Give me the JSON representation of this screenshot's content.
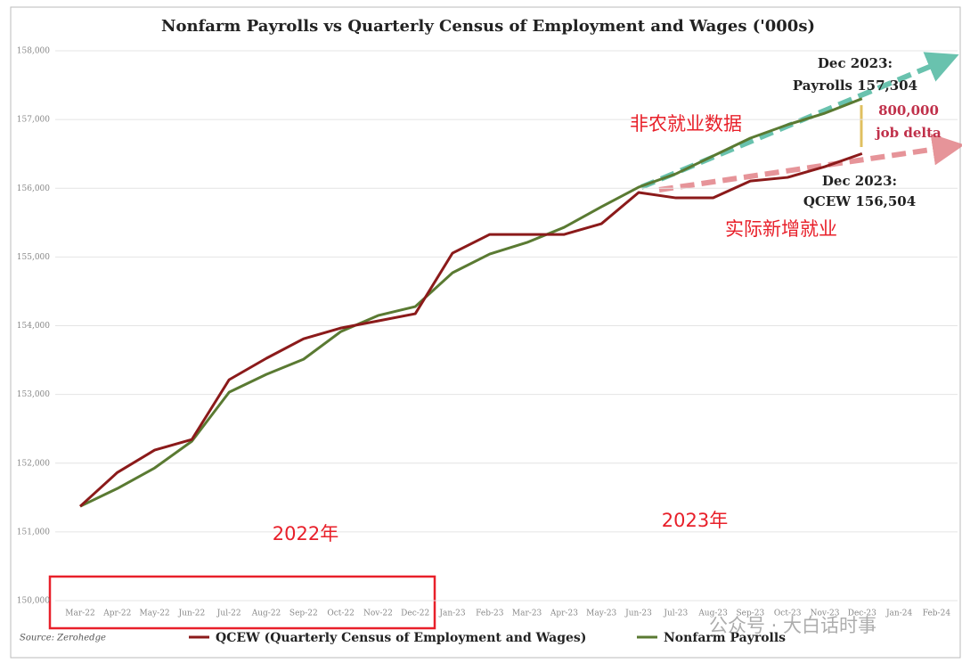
{
  "chart_data": {
    "type": "line",
    "title": "Nonfarm Payrolls vs Quarterly Census of Employment and Wages ('000s)",
    "source": "Source: Zerohedge",
    "categories": [
      "Mar-22",
      "Apr-22",
      "May-22",
      "Jun-22",
      "Jul-22",
      "Aug-22",
      "Sep-22",
      "Oct-22",
      "Nov-22",
      "Dec-22",
      "Jan-23",
      "Feb-23",
      "Mar-23",
      "Apr-23",
      "May-23",
      "Jun-23",
      "Jul-23",
      "Aug-23",
      "Sep-23",
      "Oct-23",
      "Nov-23",
      "Dec-23",
      "Jan-24",
      "Feb-24"
    ],
    "series": [
      {
        "name": "QCEW (Quarterly Census of Employment and Wages)",
        "color": "#8b1a1a",
        "values": [
          151372,
          151865,
          152190,
          152345,
          153214,
          153525,
          153810,
          153966,
          154070,
          154174,
          155056,
          155328,
          155328,
          155328,
          155484,
          155938,
          155860,
          155860,
          156106,
          156158,
          156314,
          156504,
          null,
          null
        ]
      },
      {
        "name": "Nonfarm Payrolls",
        "color": "#5a7a32",
        "values": [
          151372,
          151632,
          151930,
          152319,
          153032,
          153292,
          153512,
          153914,
          154148,
          154278,
          154770,
          155043,
          155211,
          155432,
          155730,
          156016,
          156210,
          156470,
          156729,
          156924,
          157092,
          157304,
          null,
          null
        ]
      }
    ],
    "ylim": [
      150000,
      158000
    ],
    "yticks": [
      {
        "value": 150000,
        "label": "150,000"
      },
      {
        "value": 151000,
        "label": "151,000"
      },
      {
        "value": 152000,
        "label": "152,000"
      },
      {
        "value": 153000,
        "label": "153,000"
      },
      {
        "value": 154000,
        "label": "154,000"
      },
      {
        "value": 155000,
        "label": "155,000"
      },
      {
        "value": 156000,
        "label": "156,000"
      },
      {
        "value": 157000,
        "label": "157,000"
      },
      {
        "value": 158000,
        "label": "158,000"
      }
    ],
    "grid": true,
    "annotations": [
      "Dec 2023:",
      "Payrolls 157,304",
      "800,000",
      "job delta",
      "Dec 2023:",
      "QCEW 156,504",
      "非农就业数据",
      "实际新增就业",
      "2022年",
      "2023年",
      "公众号 · 大白话时事"
    ]
  }
}
